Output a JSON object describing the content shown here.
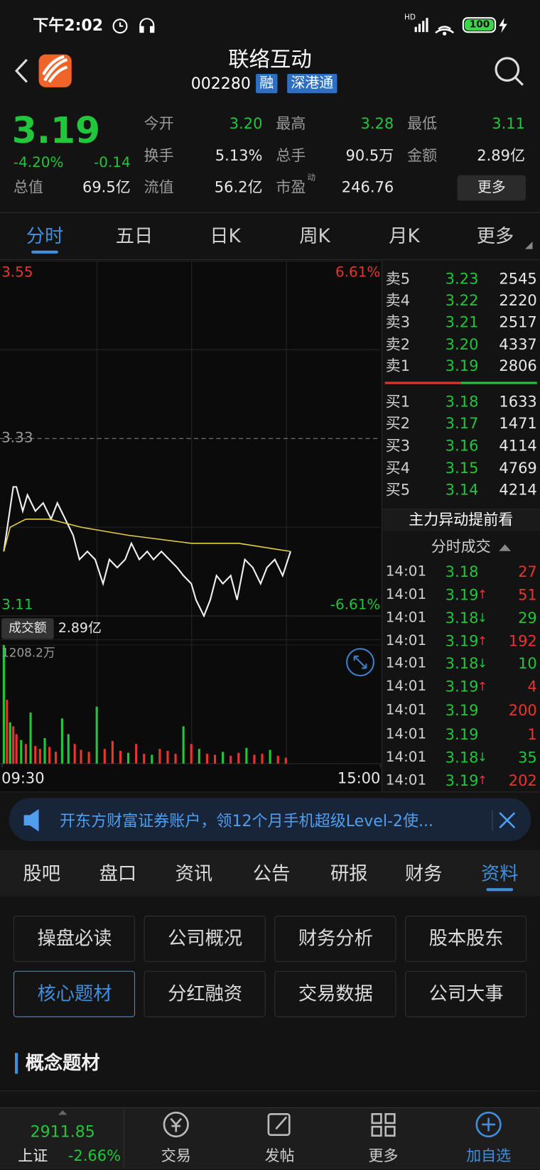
{
  "status_bar": {
    "time": "下午2:02",
    "network": "HD",
    "battery": "100"
  },
  "header": {
    "title": "联络互动",
    "code": "002280",
    "tags": [
      "融",
      "深港通"
    ]
  },
  "quote": {
    "price": "3.19",
    "change_pct": "-4.20%",
    "change": "-0.14",
    "stats": [
      {
        "label": "今开",
        "value": "3.20"
      },
      {
        "label": "最高",
        "value": "3.28"
      },
      {
        "label": "最低",
        "value": "3.11"
      },
      {
        "label": "换手",
        "value": "5.13%"
      },
      {
        "label": "总手",
        "value": "90.5万"
      },
      {
        "label": "金额",
        "value": "2.89亿"
      },
      {
        "label": "总值",
        "value": "69.5亿"
      },
      {
        "label": "流值",
        "value": "56.2亿"
      },
      {
        "label": "市盈",
        "sup": "动",
        "value": "246.76"
      }
    ],
    "more_button": "更多"
  },
  "chart_tabs": [
    "分时",
    "五日",
    "日K",
    "周K",
    "月K",
    "更多"
  ],
  "chart_data": [
    {
      "type": "line",
      "xlim": [
        0,
        240
      ],
      "xticks": [
        {
          "value": 0,
          "label": "09:30"
        },
        {
          "value": 240,
          "label": "15:00"
        }
      ],
      "ylim": [
        3.11,
        3.55
      ],
      "yticks": [
        3.11,
        3.33,
        3.55
      ],
      "y2lim": [
        -6.61,
        6.61
      ],
      "y2ticks": [
        {
          "value": -6.61,
          "label": "-6.61%"
        },
        {
          "value": 6.61,
          "label": "6.61%"
        }
      ],
      "series": [
        {
          "color": "#f2f2f2",
          "x": [
            1,
            7,
            9,
            13,
            16,
            21,
            26,
            31,
            35,
            40,
            45,
            49,
            54,
            59,
            64,
            68,
            73,
            78,
            82,
            87,
            92,
            96,
            101,
            106,
            111,
            115,
            120,
            123,
            128,
            132,
            136,
            140,
            145,
            149,
            154,
            159,
            164,
            168,
            173,
            178,
            183
          ],
          "values": [
            3.19,
            3.27,
            3.27,
            3.24,
            3.26,
            3.24,
            3.25,
            3.23,
            3.25,
            3.23,
            3.21,
            3.18,
            3.19,
            3.18,
            3.15,
            3.18,
            3.17,
            3.18,
            3.2,
            3.18,
            3.19,
            3.18,
            3.19,
            3.18,
            3.17,
            3.16,
            3.15,
            3.13,
            3.11,
            3.13,
            3.16,
            3.15,
            3.16,
            3.13,
            3.18,
            3.17,
            3.15,
            3.17,
            3.18,
            3.16,
            3.19
          ]
        },
        {
          "color": "#e6cf45",
          "x": [
            1,
            5,
            15,
            30,
            50,
            80,
            120,
            150,
            183
          ],
          "values": [
            3.19,
            3.22,
            3.23,
            3.23,
            3.22,
            3.21,
            3.2,
            3.2,
            3.19
          ]
        }
      ]
    },
    {
      "type": "bar",
      "label": "成交额",
      "total": "2.89亿",
      "xlim": [
        0,
        240
      ],
      "ylim": [
        0,
        1208.2
      ],
      "yticks": [
        {
          "value": 1208.2,
          "label": "1208.2万"
        }
      ],
      "x": [
        1,
        3,
        5,
        7,
        9,
        12,
        15,
        18,
        21,
        24,
        27,
        30,
        34,
        38,
        42,
        46,
        50,
        55,
        60,
        65,
        70,
        75,
        80,
        85,
        90,
        95,
        100,
        105,
        110,
        115,
        120,
        125,
        130,
        135,
        140,
        145,
        150,
        155,
        160,
        165,
        170,
        175,
        180
      ],
      "values": [
        1208,
        650,
        420,
        380,
        300,
        240,
        200,
        520,
        180,
        150,
        260,
        170,
        120,
        460,
        300,
        200,
        140,
        120,
        580,
        150,
        230,
        130,
        110,
        200,
        100,
        90,
        150,
        130,
        100,
        380,
        200,
        150,
        100,
        90,
        120,
        80,
        110,
        160,
        90,
        100,
        140,
        80,
        60
      ],
      "colors": [
        "#22c63a",
        "#e8352f",
        "#22c63a",
        "#e8352f",
        "#e8352f",
        "#22c63a",
        "#e8352f",
        "#22c63a",
        "#e8352f",
        "#e8352f",
        "#22c63a",
        "#e8352f",
        "#e8352f",
        "#22c63a",
        "#22c63a",
        "#e8352f",
        "#e8352f",
        "#e8352f",
        "#22c63a",
        "#e8352f",
        "#e8352f",
        "#e8352f",
        "#22c63a",
        "#e8352f",
        "#e8352f",
        "#22c63a",
        "#e8352f",
        "#e8352f",
        "#e8352f",
        "#22c63a",
        "#e8352f",
        "#22c63a",
        "#e8352f",
        "#e8352f",
        "#22c63a",
        "#e8352f",
        "#e8352f",
        "#22c63a",
        "#e8352f",
        "#e8352f",
        "#22c63a",
        "#e8352f",
        "#e8352f"
      ]
    }
  ],
  "order_book": {
    "asks": [
      {
        "label": "卖5",
        "price": "3.23",
        "volume": "2545"
      },
      {
        "label": "卖4",
        "price": "3.22",
        "volume": "2220"
      },
      {
        "label": "卖3",
        "price": "3.21",
        "volume": "2517"
      },
      {
        "label": "卖2",
        "price": "3.20",
        "volume": "4337"
      },
      {
        "label": "卖1",
        "price": "3.19",
        "volume": "2806"
      }
    ],
    "bids": [
      {
        "label": "买1",
        "price": "3.18",
        "volume": "1633"
      },
      {
        "label": "买2",
        "price": "3.17",
        "volume": "1471"
      },
      {
        "label": "买3",
        "price": "3.16",
        "volume": "4114"
      },
      {
        "label": "买4",
        "price": "3.15",
        "volume": "4769"
      },
      {
        "label": "买5",
        "price": "3.14",
        "volume": "4214"
      }
    ]
  },
  "trades": {
    "title": "主力异动提前看",
    "subtitle": "分时成交",
    "rows": [
      {
        "time": "14:01",
        "price": "3.18",
        "volume": "27",
        "color": "#e8352f"
      },
      {
        "time": "14:01",
        "price": "3.19",
        "arrow": "↑",
        "volume": "51",
        "color": "#e8352f"
      },
      {
        "time": "14:01",
        "price": "3.18",
        "arrow": "↓",
        "volume": "29",
        "color": "#22c63a"
      },
      {
        "time": "14:01",
        "price": "3.19",
        "arrow": "↑",
        "volume": "192",
        "color": "#e8352f"
      },
      {
        "time": "14:01",
        "price": "3.18",
        "arrow": "↓",
        "volume": "10",
        "color": "#22c63a"
      },
      {
        "time": "14:01",
        "price": "3.19",
        "arrow": "↑",
        "volume": "4",
        "color": "#e8352f"
      },
      {
        "time": "14:01",
        "price": "3.19",
        "volume": "200",
        "color": "#e8352f"
      },
      {
        "time": "14:01",
        "price": "3.19",
        "volume": "1",
        "color": "#e8352f"
      },
      {
        "time": "14:01",
        "price": "3.18",
        "arrow": "↓",
        "volume": "35",
        "color": "#22c63a"
      },
      {
        "time": "14:01",
        "price": "3.19",
        "arrow": "↑",
        "volume": "202",
        "color": "#e8352f"
      }
    ]
  },
  "banner": {
    "text": "开东方财富证券账户，领12个月手机超级Level-2使..."
  },
  "info_tabs": [
    "股吧",
    "盘口",
    "资讯",
    "公告",
    "研报",
    "财务",
    "资料"
  ],
  "info_buttons": [
    "操盘必读",
    "公司概况",
    "财务分析",
    "股本股东",
    "核心题材",
    "分红融资",
    "交易数据",
    "公司大事"
  ],
  "section_title": "概念题材",
  "bottom_nav": {
    "index_value": "2911.85",
    "index_name": "上证",
    "index_change": "-2.66%",
    "items": [
      "交易",
      "发帖",
      "更多",
      "加自选"
    ]
  }
}
